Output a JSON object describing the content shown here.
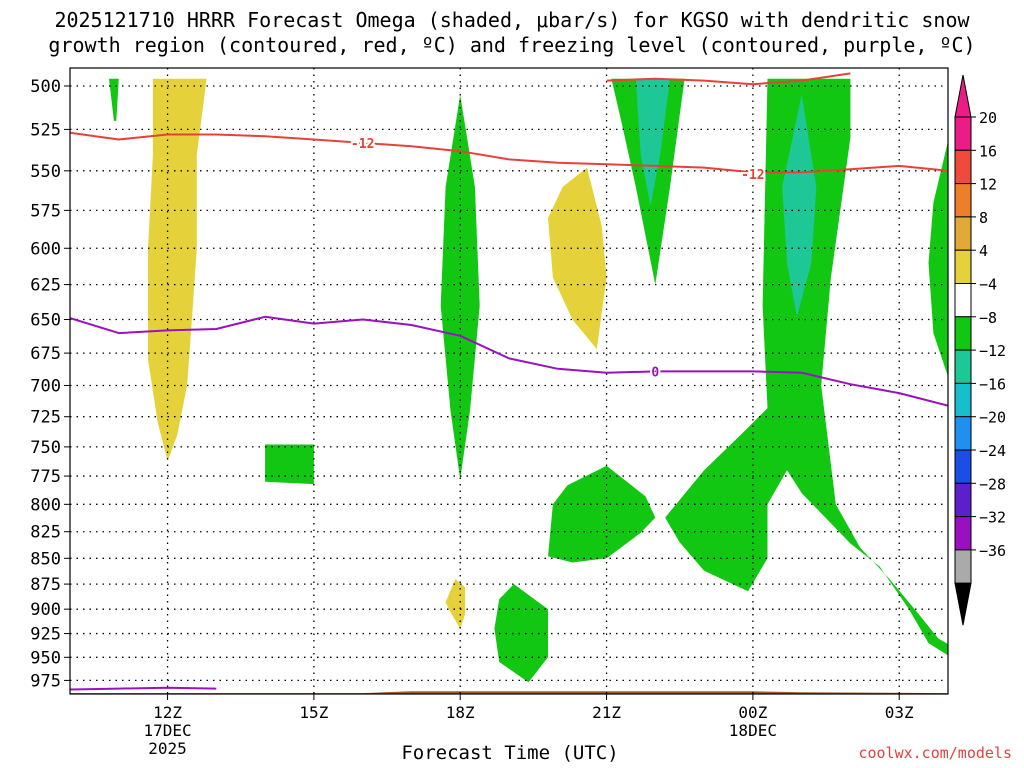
{
  "header": {
    "title_line1": "2025121710 HRRR Forecast Omega (shaded, μbar/s) for KGSO with dendritic snow",
    "title_line2": "growth region (contoured, red, ºC) and freezing level (contoured, purple, ºC)"
  },
  "credit": "coolwx.com/models",
  "chart_data": {
    "type": "heatmap",
    "xlabel": "Forecast Time (UTC)",
    "x_ticks": [
      {
        "hour": 12,
        "label": "12Z",
        "sub": [
          "17DEC",
          "2025"
        ]
      },
      {
        "hour": 15,
        "label": "15Z",
        "sub": []
      },
      {
        "hour": 18,
        "label": "18Z",
        "sub": []
      },
      {
        "hour": 21,
        "label": "21Z",
        "sub": []
      },
      {
        "hour": 24,
        "label": "00Z",
        "sub": [
          "18DEC"
        ]
      },
      {
        "hour": 27,
        "label": "03Z",
        "sub": []
      }
    ],
    "xlim_hours": [
      10,
      28
    ],
    "y_levels_hpa": [
      500,
      525,
      550,
      575,
      600,
      625,
      650,
      675,
      700,
      725,
      750,
      775,
      800,
      825,
      850,
      875,
      900,
      925,
      950,
      975
    ],
    "ylim_hpa": [
      490,
      990
    ],
    "y_scale": "log-pressure",
    "grid": "dotted",
    "colorbar": {
      "labels": [
        "20",
        "16",
        "12",
        "8",
        "4",
        "−4",
        "−8",
        "−12",
        "−16",
        "−20",
        "−24",
        "−28",
        "−32",
        "−36"
      ],
      "colors": [
        "#ea1c86",
        "#ef4a3c",
        "#ee7f2a",
        "#e3a937",
        "#e5d23a",
        "#ffffff",
        "#11c711",
        "#1ec896",
        "#17bece",
        "#1f8ff0",
        "#1c4de6",
        "#5b1fcc",
        "#9a0fbf",
        "#aaaaaa"
      ],
      "top_color": "#ea1c86",
      "bottom_color": "#000000"
    },
    "omega_regions": [
      {
        "class": "4 to 8",
        "color": "#e5d23a",
        "points": [
          [
            11.7,
            496
          ],
          [
            12.8,
            496
          ],
          [
            12.6,
            540
          ],
          [
            12.6,
            600
          ],
          [
            12.5,
            650
          ],
          [
            12.4,
            700
          ],
          [
            12.2,
            740
          ],
          [
            12.0,
            762
          ],
          [
            11.8,
            730
          ],
          [
            11.6,
            680
          ],
          [
            11.6,
            600
          ],
          [
            11.7,
            540
          ]
        ]
      },
      {
        "class": "4 to 8",
        "color": "#e5d23a",
        "points": [
          [
            20.6,
            548
          ],
          [
            20.9,
            585
          ],
          [
            21.0,
            620
          ],
          [
            20.8,
            672
          ],
          [
            20.3,
            650
          ],
          [
            19.9,
            620
          ],
          [
            19.8,
            580
          ],
          [
            20.1,
            560
          ]
        ]
      },
      {
        "class": "4 to 8",
        "color": "#e5d23a",
        "points": [
          [
            17.9,
            870
          ],
          [
            18.1,
            878
          ],
          [
            18.1,
            905
          ],
          [
            18.0,
            920
          ],
          [
            17.8,
            903
          ],
          [
            17.7,
            893
          ]
        ]
      },
      {
        "class": "-4 to -8",
        "color": "#11c711",
        "points": [
          [
            10.8,
            496
          ],
          [
            11.0,
            496
          ],
          [
            10.95,
            520
          ],
          [
            10.9,
            520
          ]
        ]
      },
      {
        "class": "-4 to -8",
        "color": "#11c711",
        "points": [
          [
            18.0,
            505
          ],
          [
            18.3,
            560
          ],
          [
            18.4,
            640
          ],
          [
            18.2,
            720
          ],
          [
            18.0,
            778
          ],
          [
            17.8,
            720
          ],
          [
            17.6,
            640
          ],
          [
            17.7,
            560
          ]
        ]
      },
      {
        "class": "-4 to -8",
        "color": "#11c711",
        "points": [
          [
            14.0,
            748
          ],
          [
            15.0,
            748
          ],
          [
            15.0,
            782
          ],
          [
            14.0,
            780
          ]
        ]
      },
      {
        "class": "-4 to -8",
        "color": "#11c711",
        "points": [
          [
            20.2,
            783
          ],
          [
            21.0,
            766
          ],
          [
            21.8,
            793
          ],
          [
            22.0,
            812
          ],
          [
            21.7,
            826
          ],
          [
            21.0,
            850
          ],
          [
            20.3,
            854
          ],
          [
            19.8,
            848
          ],
          [
            19.9,
            800
          ]
        ]
      },
      {
        "class": "-4 to -8",
        "color": "#11c711",
        "points": [
          [
            19.1,
            875
          ],
          [
            19.8,
            900
          ],
          [
            19.8,
            950
          ],
          [
            19.4,
            977
          ],
          [
            18.8,
            955
          ],
          [
            18.7,
            920
          ],
          [
            18.8,
            890
          ]
        ]
      },
      {
        "class": "-4 to -8",
        "color": "#11c711",
        "points": [
          [
            21.1,
            496
          ],
          [
            22.6,
            496
          ],
          [
            22.3,
            560
          ],
          [
            22.0,
            625
          ],
          [
            21.6,
            560
          ],
          [
            21.3,
            520
          ]
        ]
      },
      {
        "class": "-4 to -8",
        "color": "#11c711",
        "points": [
          [
            22.2,
            812
          ],
          [
            23.0,
            770
          ],
          [
            23.8,
            738
          ],
          [
            24.3,
            718
          ],
          [
            24.2,
            640
          ],
          [
            24.3,
            496
          ],
          [
            26.0,
            496
          ],
          [
            26.0,
            530
          ],
          [
            25.6,
            620
          ],
          [
            25.4,
            700
          ],
          [
            25.7,
            800
          ],
          [
            26.2,
            840
          ],
          [
            26.8,
            870
          ],
          [
            27.4,
            905
          ],
          [
            27.8,
            930
          ],
          [
            28.0,
            936
          ],
          [
            28.0,
            948
          ],
          [
            27.6,
            935
          ],
          [
            27.2,
            900
          ],
          [
            26.6,
            858
          ],
          [
            26.0,
            836
          ],
          [
            25.0,
            790
          ],
          [
            24.7,
            770
          ],
          [
            24.3,
            800
          ],
          [
            24.3,
            850
          ],
          [
            23.9,
            882
          ],
          [
            23.0,
            862
          ],
          [
            22.5,
            835
          ]
        ]
      },
      {
        "class": "-4 to -8",
        "color": "#11c711",
        "points": [
          [
            28.0,
            532
          ],
          [
            27.7,
            570
          ],
          [
            27.6,
            610
          ],
          [
            27.7,
            660
          ],
          [
            28.0,
            693
          ]
        ]
      },
      {
        "class": "-8 to -12",
        "color": "#1ec896",
        "points": [
          [
            21.6,
            496
          ],
          [
            22.3,
            496
          ],
          [
            22.1,
            540
          ],
          [
            21.9,
            572
          ],
          [
            21.7,
            540
          ]
        ]
      },
      {
        "class": "-8 to -12",
        "color": "#1ec896",
        "points": [
          [
            25.0,
            505
          ],
          [
            25.3,
            560
          ],
          [
            25.2,
            610
          ],
          [
            24.9,
            648
          ],
          [
            24.7,
            610
          ],
          [
            24.6,
            560
          ]
        ]
      }
    ],
    "contours": [
      {
        "color": "#e8403a",
        "label": "-12",
        "label_at": [
          [
            16.0,
            533
          ],
          [
            24.0,
            552
          ]
        ],
        "points": [
          [
            10,
            527
          ],
          [
            11,
            531
          ],
          [
            12,
            528
          ],
          [
            13,
            528
          ],
          [
            14,
            529
          ],
          [
            15,
            531
          ],
          [
            16,
            533
          ],
          [
            17,
            535
          ],
          [
            18,
            538
          ],
          [
            19,
            543
          ],
          [
            20,
            545
          ],
          [
            21,
            546
          ],
          [
            22,
            547
          ],
          [
            23,
            548
          ],
          [
            24,
            551
          ],
          [
            25,
            551
          ],
          [
            26,
            549
          ],
          [
            27,
            547
          ],
          [
            28,
            550
          ]
        ]
      },
      {
        "color": "#e8403a",
        "label": "",
        "label_at": [],
        "points": [
          [
            21,
            497
          ],
          [
            22,
            496
          ],
          [
            23,
            497
          ],
          [
            24,
            499
          ],
          [
            25,
            497
          ],
          [
            26,
            493
          ]
        ]
      },
      {
        "color": "#9a12bf",
        "label": "0",
        "label_at": [
          [
            22.0,
            689
          ]
        ],
        "points": [
          [
            10,
            649
          ],
          [
            11,
            660
          ],
          [
            12,
            658
          ],
          [
            13,
            657
          ],
          [
            14,
            648
          ],
          [
            15,
            653
          ],
          [
            16,
            650
          ],
          [
            17,
            654
          ],
          [
            18,
            662
          ],
          [
            19,
            679
          ],
          [
            20,
            687
          ],
          [
            21,
            690
          ],
          [
            22,
            689
          ],
          [
            23,
            689
          ],
          [
            24,
            689
          ],
          [
            25,
            690
          ],
          [
            26,
            699
          ],
          [
            27,
            706
          ],
          [
            28,
            716
          ]
        ]
      },
      {
        "color": "#9a12bf",
        "label": "",
        "label_at": [],
        "points": [
          [
            10,
            985
          ],
          [
            11,
            984
          ],
          [
            12,
            983
          ],
          [
            13,
            984
          ]
        ]
      }
    ],
    "terrain": {
      "color": "#a05a2c",
      "top_hpa": [
        [
          10,
          989
        ],
        [
          16,
          989
        ],
        [
          17,
          987
        ],
        [
          24,
          987
        ],
        [
          25,
          988
        ],
        [
          28,
          989
        ]
      ]
    }
  }
}
